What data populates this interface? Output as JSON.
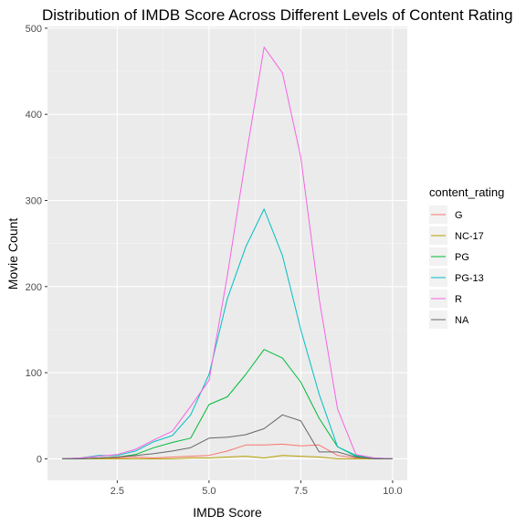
{
  "chart_data": {
    "type": "line",
    "title": "Distribution of IMDB Score Across Different Levels of Content Rating",
    "xlabel": "IMDB Score",
    "ylabel": "Movie Count",
    "xlim": [
      0.6,
      10.4
    ],
    "ylim": [
      -25,
      502
    ],
    "x_ticks": [
      2.5,
      5.0,
      7.5,
      10.0
    ],
    "x_tick_labels": [
      "2.5",
      "5.0",
      "7.5",
      "10.0"
    ],
    "y_ticks": [
      0,
      100,
      200,
      300,
      400,
      500
    ],
    "y_tick_labels": [
      "0",
      "100",
      "200",
      "300",
      "400",
      "500"
    ],
    "grid": true,
    "legend_title": "content_rating",
    "legend_position": "right",
    "series": [
      {
        "name": "G",
        "color": "#F8766D",
        "x": [
          1.0,
          1.5,
          2.0,
          2.5,
          3.0,
          3.5,
          4.0,
          4.5,
          5.0,
          5.5,
          6.0,
          6.5,
          7.0,
          7.5,
          8.0,
          8.5,
          9.0,
          9.5,
          10.0
        ],
        "values": [
          0,
          0,
          1,
          1,
          2,
          1,
          2,
          3,
          4,
          9,
          16,
          16,
          17,
          15,
          16,
          4,
          1,
          0,
          0
        ]
      },
      {
        "name": "NC-17",
        "color": "#B79F00",
        "x": [
          1.0,
          1.5,
          2.0,
          2.5,
          3.0,
          3.5,
          4.0,
          4.5,
          5.0,
          5.5,
          6.0,
          6.5,
          7.0,
          7.5,
          8.0,
          8.5,
          9.0,
          9.5,
          10.0
        ],
        "values": [
          0,
          0,
          0,
          0,
          0,
          0,
          0,
          1,
          1,
          2,
          3,
          1,
          4,
          3,
          2,
          0,
          0,
          0,
          0
        ]
      },
      {
        "name": "PG",
        "color": "#00BA38",
        "x": [
          1.0,
          1.5,
          2.0,
          2.5,
          3.0,
          3.5,
          4.0,
          4.5,
          5.0,
          5.5,
          6.0,
          6.5,
          7.0,
          7.5,
          8.0,
          8.5,
          9.0,
          9.5,
          10.0
        ],
        "values": [
          0,
          0,
          1,
          2,
          5,
          13,
          19,
          24,
          63,
          72,
          98,
          127,
          117,
          89,
          47,
          14,
          3,
          0,
          0
        ]
      },
      {
        "name": "PG-13",
        "color": "#00BFC4",
        "x": [
          1.0,
          1.5,
          2.0,
          2.5,
          3.0,
          3.5,
          4.0,
          4.5,
          5.0,
          5.5,
          6.0,
          6.5,
          7.0,
          7.5,
          8.0,
          8.5,
          9.0,
          9.5,
          10.0
        ],
        "values": [
          0,
          1,
          4,
          4,
          9,
          20,
          27,
          51,
          98,
          186,
          246,
          290,
          236,
          150,
          75,
          14,
          4,
          1,
          0
        ]
      },
      {
        "name": "R",
        "color": "#F564E3",
        "x": [
          1.0,
          1.5,
          2.0,
          2.5,
          3.0,
          3.5,
          4.0,
          4.5,
          5.0,
          5.5,
          6.0,
          6.5,
          7.0,
          7.5,
          8.0,
          8.5,
          9.0,
          9.5,
          10.0
        ],
        "values": [
          0,
          1,
          3,
          5,
          11,
          22,
          32,
          61,
          91,
          213,
          349,
          478,
          448,
          350,
          186,
          58,
          5,
          1,
          0
        ]
      },
      {
        "name": "NA",
        "color": "#666666",
        "x": [
          1.0,
          1.5,
          2.0,
          2.5,
          3.0,
          3.5,
          4.0,
          4.5,
          5.0,
          5.5,
          6.0,
          6.5,
          7.0,
          7.5,
          8.0,
          8.5,
          9.0,
          9.5,
          10.0
        ],
        "values": [
          0,
          0,
          1,
          2,
          4,
          6,
          9,
          13,
          24,
          25,
          28,
          35,
          51,
          44,
          8,
          8,
          2,
          0,
          0
        ]
      }
    ]
  }
}
